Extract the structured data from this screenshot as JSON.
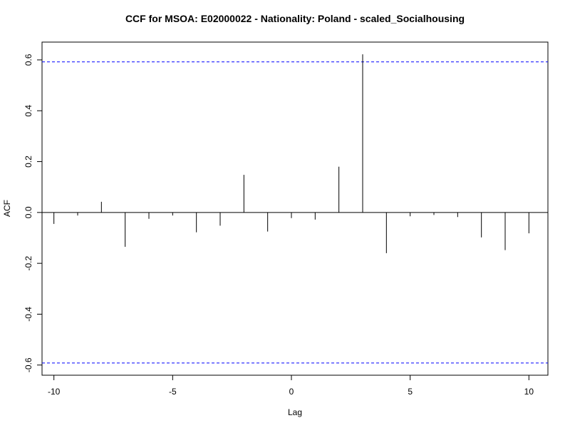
{
  "chart_data": {
    "type": "bar",
    "title": "CCF for MSOA: E02000022 - Nationality: Poland - scaled_Socialhousing",
    "xlabel": "Lag",
    "ylabel": "ACF",
    "xlim": [
      -10.5,
      10.8
    ],
    "ylim": [
      -0.64,
      0.67
    ],
    "x_ticks": [
      -10,
      -5,
      0,
      5,
      10
    ],
    "y_ticks": [
      -0.6,
      -0.4,
      -0.2,
      0.0,
      0.2,
      0.4,
      0.6
    ],
    "x_tick_labels": [
      "-10",
      "-5",
      "0",
      "5",
      "10"
    ],
    "y_tick_labels": [
      "-0.6",
      "-0.4",
      "-0.2",
      "0.0",
      "0.2",
      "0.4",
      "0.6"
    ],
    "lags": [
      -10,
      -9,
      -8,
      -7,
      -6,
      -5,
      -4,
      -3,
      -2,
      -1,
      0,
      1,
      2,
      3,
      4,
      5,
      6,
      7,
      8,
      9,
      10
    ],
    "values": [
      -0.045,
      -0.012,
      0.042,
      -0.135,
      -0.025,
      -0.012,
      -0.078,
      -0.052,
      0.148,
      -0.075,
      -0.022,
      -0.028,
      0.18,
      0.622,
      -0.16,
      -0.015,
      -0.01,
      -0.018,
      -0.098,
      -0.148,
      -0.082
    ],
    "confidence_bounds": [
      0.592,
      -0.592
    ],
    "colors": {
      "bars": "#000000",
      "confidence": "#0000ff",
      "zero_line": "#000000",
      "frame": "#000000"
    },
    "grid": false
  }
}
